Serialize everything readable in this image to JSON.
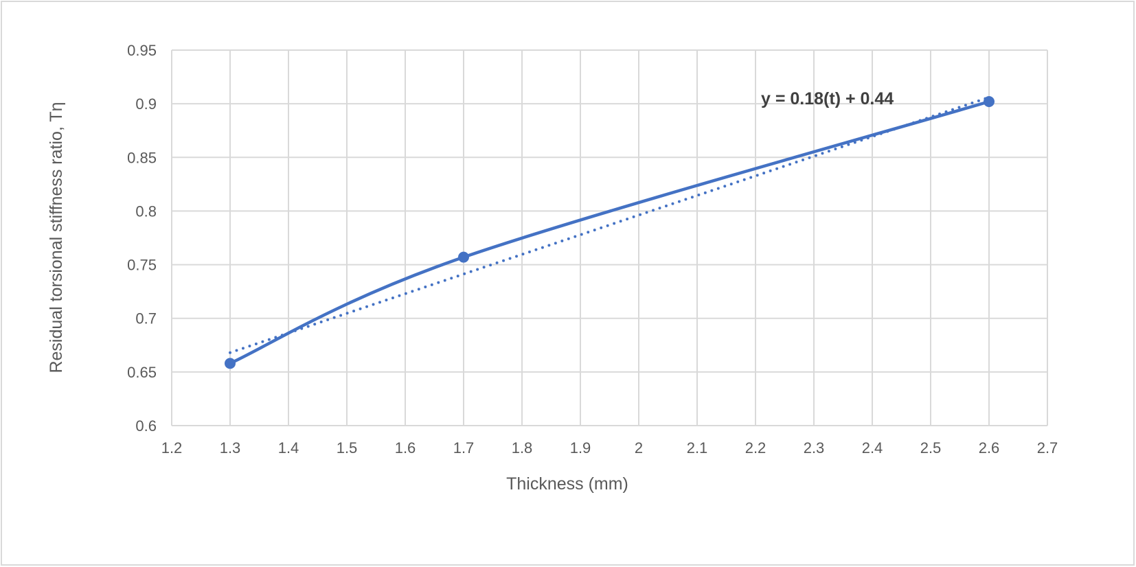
{
  "chart_data": {
    "type": "line",
    "title": "",
    "xlabel": "Thickness (mm)",
    "ylabel": "Residual torsional stiffness ratio, Tη",
    "xlim": [
      1.2,
      2.7
    ],
    "ylim": [
      0.6,
      0.95
    ],
    "xticks": [
      "1.2",
      "1.3",
      "1.4",
      "1.5",
      "1.6",
      "1.7",
      "1.8",
      "1.9",
      "2",
      "2.1",
      "2.2",
      "2.3",
      "2.4",
      "2.5",
      "2.6",
      "2.7"
    ],
    "yticks": [
      "0.6",
      "0.65",
      "0.7",
      "0.75",
      "0.8",
      "0.85",
      "0.9",
      "0.95"
    ],
    "grid": true,
    "series": [
      {
        "name": "Tη",
        "smooth": true,
        "markers": true,
        "color": "#4472C4",
        "x": [
          1.3,
          1.7,
          2.6
        ],
        "y": [
          0.658,
          0.757,
          0.902
        ]
      }
    ],
    "trendline": {
      "type": "linear",
      "style": "dotted",
      "color": "#4472C4",
      "x": [
        1.3,
        2.6
      ],
      "y": [
        0.668,
        0.906
      ],
      "equation": "y = 0.18(t) + 0.44"
    }
  }
}
